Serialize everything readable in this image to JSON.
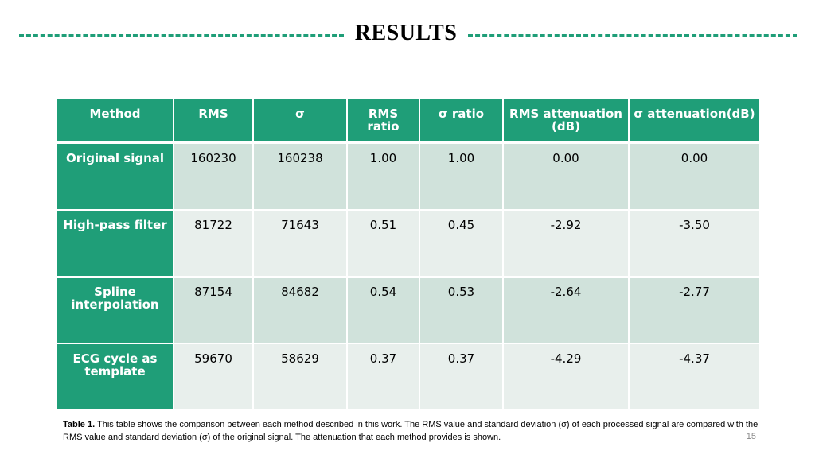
{
  "slide": {
    "title": "RESULTS",
    "page_number": "15"
  },
  "table": {
    "headers": [
      "Method",
      "RMS",
      "σ",
      "RMS ratio",
      "σ ratio",
      "RMS attenuation (dB)",
      "σ attenuation(dB)"
    ],
    "rows": [
      {
        "method": "Original signal",
        "values": [
          "160230",
          "160238",
          "1.00",
          "1.00",
          "0.00",
          "0.00"
        ]
      },
      {
        "method": "High-pass filter",
        "values": [
          "81722",
          "71643",
          "0.51",
          "0.45",
          "-2.92",
          "-3.50"
        ]
      },
      {
        "method": "Spline interpolation",
        "values": [
          "87154",
          "84682",
          "0.54",
          "0.53",
          "-2.64",
          "-2.77"
        ]
      },
      {
        "method": "ECG cycle as template",
        "values": [
          "59670",
          "58629",
          "0.37",
          "0.37",
          "-4.29",
          "-4.37"
        ]
      }
    ]
  },
  "caption": {
    "label": "Table 1.",
    "text": " This table shows the comparison between each method described in this work. The RMS value and standard deviation (σ) of each processed signal are compared with the RMS value and standard deviation (σ) of the original signal. The attenuation that each method provides is shown."
  },
  "colors": {
    "accent": "#1f9e78",
    "row_odd": "#d0e2db",
    "row_even": "#e8efec"
  }
}
